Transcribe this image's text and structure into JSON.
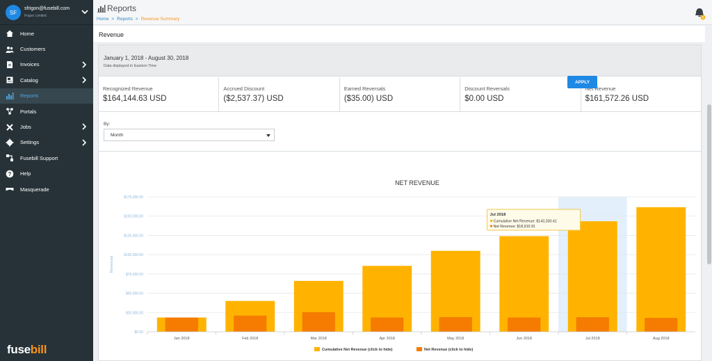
{
  "user": {
    "initials": "SF",
    "email": "sfrigon@fusebill.com",
    "company": "Frigon Limited"
  },
  "nav": [
    {
      "label": "Home",
      "icon": "home-icon",
      "expand": false
    },
    {
      "label": "Customers",
      "icon": "users-icon",
      "expand": false
    },
    {
      "label": "Invoices",
      "icon": "invoice-icon",
      "expand": true
    },
    {
      "label": "Catalog",
      "icon": "catalog-icon",
      "expand": true
    },
    {
      "label": "Reports",
      "icon": "bar-chart-icon",
      "expand": false,
      "active": true
    },
    {
      "label": "Portals",
      "icon": "portals-icon",
      "expand": false
    },
    {
      "label": "Jobs",
      "icon": "tools-icon",
      "expand": true
    },
    {
      "label": "Settings",
      "icon": "gear-icon",
      "expand": true
    },
    {
      "label": "Fusebill Support",
      "icon": "support-icon",
      "expand": false
    },
    {
      "label": "Help",
      "icon": "help-icon",
      "expand": false
    },
    {
      "label": "Masquerade",
      "icon": "mask-icon",
      "expand": false
    }
  ],
  "brand": {
    "prefix": "fuse",
    "suffix": "bill"
  },
  "header": {
    "title": "Reports",
    "breadcrumbs": [
      "Home",
      "Reports",
      "Revenue Summary"
    ]
  },
  "page_title": "Revenue",
  "date_range": "January 1, 2018 - August 30, 2018",
  "date_note": "Data displayed in Eastern Time",
  "metrics": [
    {
      "label": "Recognized Revenue",
      "value": "$164,144.63 USD"
    },
    {
      "label": "Accrued Discount",
      "value": "($2,537.37) USD"
    },
    {
      "label": "Earned Reversals",
      "value": "($35.00) USD"
    },
    {
      "label": "Discount Reversals",
      "value": "$0.00 USD"
    },
    {
      "label": "Net Revenue",
      "value": "$161,572.26 USD"
    }
  ],
  "filter": {
    "by_label": "By:",
    "selected": "Month"
  },
  "apply_label": "APPLY",
  "colors": {
    "cumulative": "#ffb300",
    "net": "#f57c00",
    "accent": "#1e88e5",
    "sidebar": "#263238"
  },
  "chart_data": {
    "type": "bar",
    "title": "NET REVENUE",
    "ylabel": "Revenues",
    "ylim": [
      0,
      175000
    ],
    "yticks": [
      "$0.00",
      "$25,000.00",
      "$50,000.00",
      "$75,000.00",
      "$100,000.00",
      "$125,000.00",
      "$150,000.00",
      "$175,000.00"
    ],
    "categories": [
      "Jan 2018",
      "Feb 2018",
      "Mar 2018",
      "Apr 2018",
      "May 2018",
      "Jun 2018",
      "Jul 2018",
      "Aug 2018"
    ],
    "series": [
      {
        "name": "Cumulative Net Revenue (click to hide)",
        "values": [
          18500,
          40000,
          66000,
          85500,
          105000,
          124000,
          143330.41,
          161572.26
        ]
      },
      {
        "name": "Net Revenue (click to hide)",
        "values": [
          18500,
          21000,
          25500,
          18500,
          19000,
          18500,
          18910.91,
          18000
        ]
      }
    ],
    "tooltip": {
      "category": "Jul 2018",
      "lines": [
        "Cumulative Net Revenue: $143,330.41",
        "Net Revenue: $18,910.91"
      ]
    },
    "highlight_category": "Jul 2018",
    "legend": "bottom",
    "grid": true
  }
}
